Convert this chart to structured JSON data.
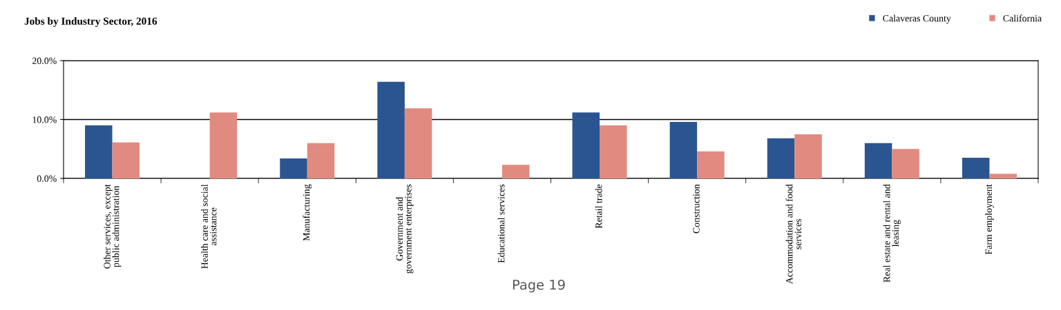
{
  "chart_data": {
    "type": "bar",
    "title": "Jobs by Industry Sector, 2016",
    "categories": [
      "Other services, except\npublic administration",
      "Health care and social\nassistance",
      "Manufacturing",
      "Government and\ngovernment enterprises",
      "Educational services",
      "Retail trade",
      "Construction",
      "Accommodation and food\nservices",
      "Real estate and rental and\nleasing",
      "Farm employment"
    ],
    "series": [
      {
        "name": "Calaveras County",
        "color": "#2a5590",
        "values": [
          9.0,
          null,
          3.4,
          16.4,
          null,
          11.2,
          9.6,
          6.8,
          6.0,
          3.5
        ]
      },
      {
        "name": "California",
        "color": "#e08a80",
        "values": [
          6.1,
          11.2,
          6.0,
          11.9,
          2.3,
          9.0,
          4.6,
          7.5,
          5.0,
          0.8
        ]
      }
    ],
    "ylim": [
      0,
      20
    ],
    "yticks": [
      {
        "value": 0,
        "label": "0.0%"
      },
      {
        "value": 10,
        "label": "10.0%"
      },
      {
        "value": 20,
        "label": "20.0%"
      }
    ],
    "grid": "y",
    "legend": "top right",
    "annotations": [
      "Page 19"
    ]
  }
}
